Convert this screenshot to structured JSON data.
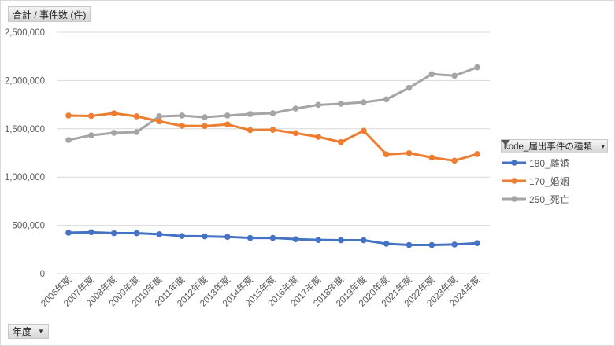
{
  "value_field_button": "合計 / 事件数 (件)",
  "axis_field_button": "年度",
  "legend": {
    "title": "code_届出事件の種類",
    "filter_icon": "filter-icon"
  },
  "chart_data": {
    "type": "line",
    "title": "",
    "xlabel": "",
    "ylabel": "合計 / 事件数 (件)",
    "ylim": [
      0,
      2500000
    ],
    "yticks": [
      "0",
      "500,000",
      "1,000,000",
      "1,500,000",
      "2,000,000",
      "2,500,000"
    ],
    "ytick_values": [
      0,
      500000,
      1000000,
      1500000,
      2000000,
      2500000
    ],
    "grid": true,
    "legend_position": "right",
    "categories": [
      "2006年度",
      "2007年度",
      "2008年度",
      "2009年度",
      "2010年度",
      "2011年度",
      "2012年度",
      "2013年度",
      "2014年度",
      "2015年度",
      "2016年度",
      "2017年度",
      "2018年度",
      "2019年度",
      "2020年度",
      "2021年度",
      "2022年度",
      "2023年度",
      "2024年度"
    ],
    "series": [
      {
        "name": "180_離婚",
        "color": "#4472c4",
        "values": [
          424000,
          429000,
          419000,
          419000,
          408000,
          389000,
          386000,
          381000,
          370000,
          370000,
          357000,
          349000,
          346000,
          346000,
          310000,
          297000,
          297000,
          302000,
          316000
        ]
      },
      {
        "name": "170_婚姻",
        "color": "#ed7d31",
        "values": [
          1637000,
          1633000,
          1661000,
          1629000,
          1577000,
          1531000,
          1528000,
          1545000,
          1487000,
          1490000,
          1455000,
          1417000,
          1362000,
          1480000,
          1235000,
          1248000,
          1202000,
          1170000,
          1238000
        ]
      },
      {
        "name": "250_死亡",
        "color": "#a5a5a5",
        "values": [
          1384000,
          1433000,
          1458000,
          1466000,
          1629000,
          1637000,
          1620000,
          1637000,
          1653000,
          1661000,
          1710000,
          1748000,
          1759000,
          1775000,
          1805000,
          1924000,
          2066000,
          2050000,
          2136000
        ]
      }
    ]
  }
}
